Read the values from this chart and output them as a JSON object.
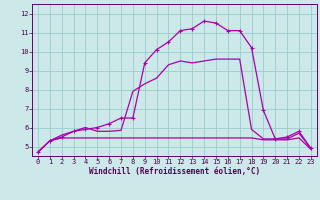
{
  "xlabel": "Windchill (Refroidissement éolien,°C)",
  "bg_color": "#cce8e8",
  "grid_color": "#99cccc",
  "line_color": "#aa00aa",
  "xlim": [
    -0.5,
    23.5
  ],
  "ylim": [
    4.5,
    12.5
  ],
  "yticks": [
    5,
    6,
    7,
    8,
    9,
    10,
    11,
    12
  ],
  "xticks": [
    0,
    1,
    2,
    3,
    4,
    5,
    6,
    7,
    8,
    9,
    10,
    11,
    12,
    13,
    14,
    15,
    16,
    17,
    18,
    19,
    20,
    21,
    22,
    23
  ],
  "series1_x": [
    0,
    1,
    2,
    3,
    4,
    5,
    6,
    7,
    8,
    9,
    10,
    11,
    12,
    13,
    14,
    15,
    16,
    17,
    18,
    19,
    20,
    21,
    22,
    23
  ],
  "series1_y": [
    4.7,
    5.3,
    5.5,
    5.8,
    5.9,
    6.0,
    6.2,
    6.5,
    6.5,
    9.4,
    10.1,
    10.5,
    11.1,
    11.2,
    11.6,
    11.5,
    11.1,
    11.1,
    10.2,
    6.9,
    5.4,
    5.5,
    5.8,
    4.9
  ],
  "series2_x": [
    0,
    1,
    2,
    3,
    4,
    5,
    6,
    7,
    8,
    9,
    10,
    11,
    12,
    13,
    14,
    15,
    16,
    17,
    18,
    19,
    20,
    21,
    22,
    23
  ],
  "series2_y": [
    4.7,
    5.3,
    5.45,
    5.45,
    5.45,
    5.45,
    5.45,
    5.45,
    5.45,
    5.45,
    5.45,
    5.45,
    5.45,
    5.45,
    5.45,
    5.45,
    5.45,
    5.45,
    5.45,
    5.35,
    5.35,
    5.35,
    5.45,
    4.85
  ],
  "series3_x": [
    0,
    1,
    2,
    3,
    4,
    5,
    6,
    7,
    8,
    9,
    10,
    11,
    12,
    13,
    14,
    15,
    16,
    17,
    18,
    19,
    20,
    21,
    22,
    23
  ],
  "series3_y": [
    4.7,
    5.3,
    5.6,
    5.8,
    6.0,
    5.8,
    5.8,
    5.85,
    7.9,
    8.3,
    8.6,
    9.3,
    9.5,
    9.4,
    9.5,
    9.6,
    9.6,
    9.6,
    5.9,
    5.4,
    5.4,
    5.4,
    5.7,
    4.9
  ],
  "lw": 0.9,
  "xlabel_fontsize": 5.5,
  "tick_fontsize": 5.0
}
